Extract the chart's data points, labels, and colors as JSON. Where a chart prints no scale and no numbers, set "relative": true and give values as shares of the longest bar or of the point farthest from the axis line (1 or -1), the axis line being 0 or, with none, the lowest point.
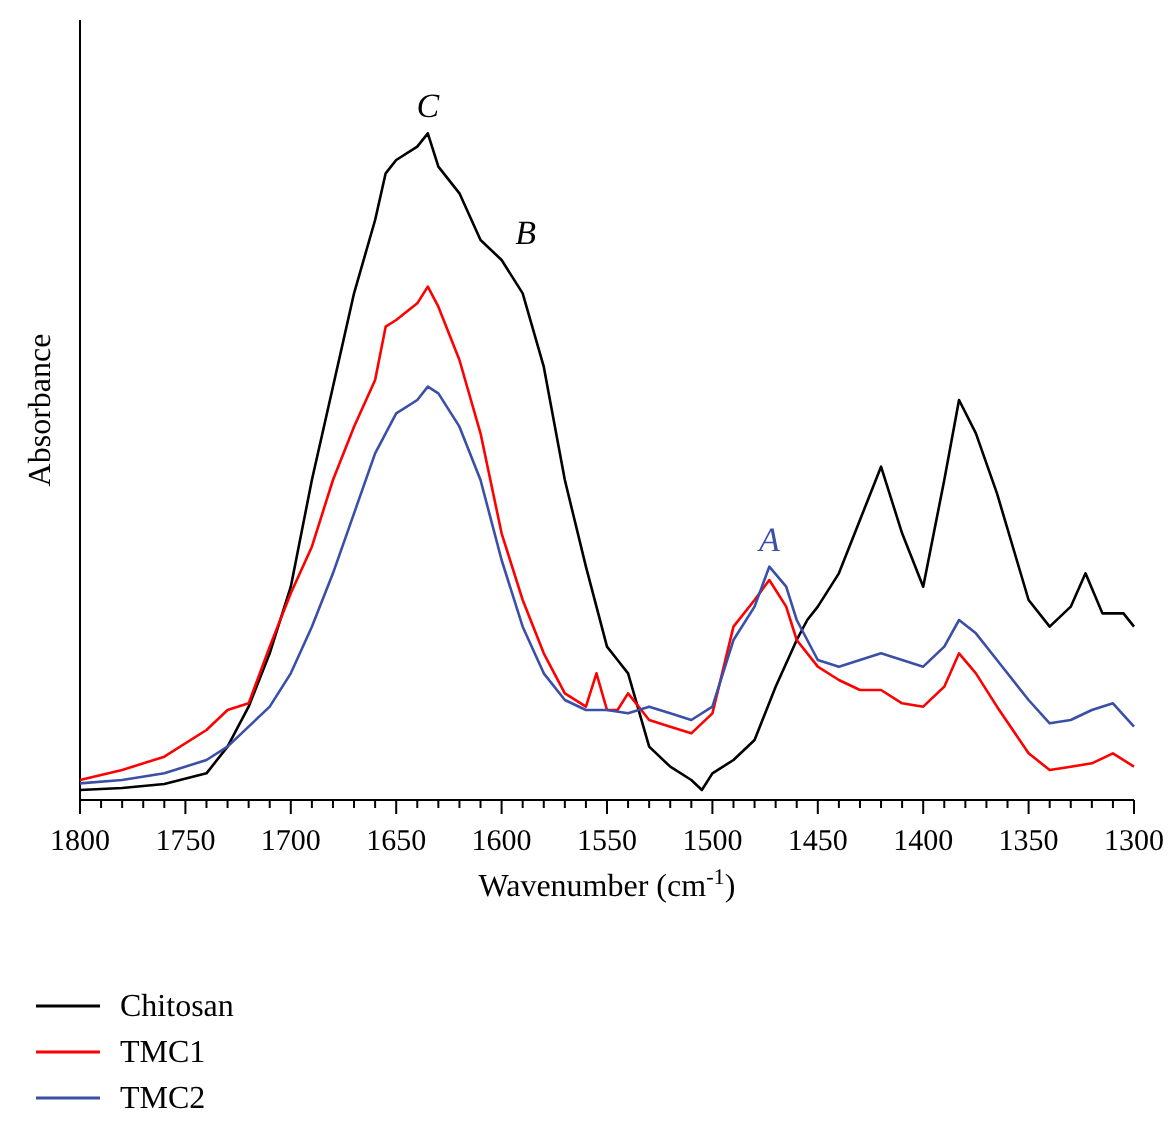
{
  "chart_data": {
    "type": "line",
    "relative": true,
    "xlabel": "Wavenumber (cm$^{-1}$)",
    "ylabel": "Absorbance",
    "xlim": [
      1800,
      1300
    ],
    "xticks": [
      1800,
      {
        "value": 1790,
        "label": null
      },
      {
        "value": 1780,
        "label": null
      },
      {
        "value": 1770,
        "label": null
      },
      {
        "value": 1760,
        "label": null
      },
      1750,
      {
        "value": 1740,
        "label": null
      },
      {
        "value": 1730,
        "label": null
      },
      {
        "value": 1720,
        "label": null
      },
      {
        "value": 1710,
        "label": null
      },
      1700,
      {
        "value": 1690,
        "label": null
      },
      {
        "value": 1680,
        "label": null
      },
      {
        "value": 1670,
        "label": null
      },
      {
        "value": 1660,
        "label": null
      },
      1650,
      {
        "value": 1640,
        "label": null
      },
      {
        "value": 1630,
        "label": null
      },
      {
        "value": 1620,
        "label": null
      },
      {
        "value": 1610,
        "label": null
      },
      1600,
      {
        "value": 1590,
        "label": null
      },
      {
        "value": 1580,
        "label": null
      },
      {
        "value": 1570,
        "label": null
      },
      {
        "value": 1560,
        "label": null
      },
      1550,
      {
        "value": 1540,
        "label": null
      },
      {
        "value": 1530,
        "label": null
      },
      {
        "value": 1520,
        "label": null
      },
      {
        "value": 1510,
        "label": null
      },
      1500,
      {
        "value": 1490,
        "label": null
      },
      {
        "value": 1480,
        "label": null
      },
      {
        "value": 1470,
        "label": null
      },
      {
        "value": 1460,
        "label": null
      },
      1450,
      {
        "value": 1440,
        "label": null
      },
      {
        "value": 1430,
        "label": null
      },
      {
        "value": 1420,
        "label": null
      },
      {
        "value": 1410,
        "label": null
      },
      1400,
      {
        "value": 1390,
        "label": null
      },
      {
        "value": 1380,
        "label": null
      },
      {
        "value": 1370,
        "label": null
      },
      {
        "value": 1360,
        "label": null
      },
      1350,
      {
        "value": 1340,
        "label": null
      },
      {
        "value": 1330,
        "label": null
      },
      {
        "value": 1320,
        "label": null
      },
      {
        "value": 1310,
        "label": null
      },
      1300
    ],
    "legend": "bottom",
    "line_style": "solid",
    "series": [
      {
        "name": "Chitosan",
        "color": "#000000",
        "x": [
          1800,
          1780,
          1760,
          1740,
          1730,
          1720,
          1710,
          1700,
          1690,
          1680,
          1670,
          1660,
          1655,
          1650,
          1640,
          1635,
          1630,
          1620,
          1610,
          1600,
          1590,
          1580,
          1570,
          1560,
          1550,
          1545,
          1540,
          1530,
          1520,
          1510,
          1505,
          1500,
          1490,
          1480,
          1470,
          1460,
          1455,
          1450,
          1440,
          1430,
          1420,
          1410,
          1400,
          1390,
          1383,
          1375,
          1365,
          1350,
          1340,
          1330,
          1323,
          1315,
          1305,
          1300
        ],
        "values": [
          0.015,
          0.018,
          0.024,
          0.04,
          0.08,
          0.14,
          0.22,
          0.32,
          0.48,
          0.62,
          0.76,
          0.87,
          0.94,
          0.96,
          0.98,
          1,
          0.95,
          0.91,
          0.84,
          0.81,
          0.76,
          0.65,
          0.48,
          0.35,
          0.23,
          0.21,
          0.19,
          0.08,
          0.05,
          0.03,
          0.015,
          0.04,
          0.06,
          0.09,
          0.17,
          0.24,
          0.27,
          0.29,
          0.34,
          0.42,
          0.5,
          0.4,
          0.32,
          0.48,
          0.6,
          0.55,
          0.46,
          0.3,
          0.26,
          0.29,
          0.34,
          0.28,
          0.28,
          0.26
        ]
      },
      {
        "name": "TMC1",
        "color": "#ff0000",
        "x": [
          1800,
          1780,
          1760,
          1740,
          1730,
          1720,
          1710,
          1700,
          1690,
          1680,
          1670,
          1660,
          1655,
          1650,
          1640,
          1635,
          1630,
          1620,
          1610,
          1600,
          1590,
          1580,
          1570,
          1560,
          1555,
          1550,
          1545,
          1540,
          1530,
          1520,
          1510,
          1500,
          1490,
          1480,
          1473,
          1465,
          1460,
          1450,
          1440,
          1430,
          1420,
          1410,
          1400,
          1390,
          1383,
          1375,
          1365,
          1350,
          1340,
          1330,
          1320,
          1310,
          1300
        ],
        "values": [
          0.03,
          0.045,
          0.065,
          0.105,
          0.135,
          0.145,
          0.23,
          0.31,
          0.38,
          0.48,
          0.56,
          0.63,
          0.71,
          0.72,
          0.745,
          0.77,
          0.74,
          0.66,
          0.55,
          0.4,
          0.3,
          0.22,
          0.16,
          0.14,
          0.19,
          0.135,
          0.135,
          0.16,
          0.12,
          0.11,
          0.1,
          0.13,
          0.26,
          0.3,
          0.33,
          0.29,
          0.24,
          0.2,
          0.18,
          0.165,
          0.165,
          0.145,
          0.14,
          0.17,
          0.22,
          0.19,
          0.14,
          0.07,
          0.045,
          0.05,
          0.055,
          0.07,
          0.05
        ]
      },
      {
        "name": "TMC2",
        "color": "#3a4fa8",
        "x": [
          1800,
          1780,
          1760,
          1740,
          1730,
          1720,
          1710,
          1700,
          1690,
          1680,
          1670,
          1660,
          1650,
          1640,
          1635,
          1630,
          1620,
          1610,
          1600,
          1590,
          1580,
          1570,
          1560,
          1550,
          1540,
          1530,
          1520,
          1510,
          1500,
          1490,
          1480,
          1473,
          1465,
          1460,
          1450,
          1440,
          1430,
          1420,
          1410,
          1400,
          1390,
          1383,
          1375,
          1365,
          1350,
          1340,
          1330,
          1320,
          1310,
          1300
        ],
        "values": [
          0.025,
          0.03,
          0.04,
          0.06,
          0.08,
          0.11,
          0.14,
          0.19,
          0.26,
          0.34,
          0.43,
          0.52,
          0.58,
          0.6,
          0.62,
          0.61,
          0.56,
          0.48,
          0.36,
          0.26,
          0.19,
          0.15,
          0.135,
          0.135,
          0.13,
          0.14,
          0.13,
          0.12,
          0.14,
          0.24,
          0.29,
          0.35,
          0.32,
          0.27,
          0.21,
          0.2,
          0.21,
          0.22,
          0.21,
          0.2,
          0.23,
          0.27,
          0.25,
          0.21,
          0.15,
          0.115,
          0.12,
          0.135,
          0.145,
          0.11
        ]
      }
    ],
    "annotations": [
      {
        "text": "C",
        "x": 1635,
        "y": 1
      },
      {
        "text": "B",
        "x": 1600,
        "y": 0.81
      },
      {
        "text": "A",
        "x": 1473,
        "y": 0.35
      }
    ]
  }
}
